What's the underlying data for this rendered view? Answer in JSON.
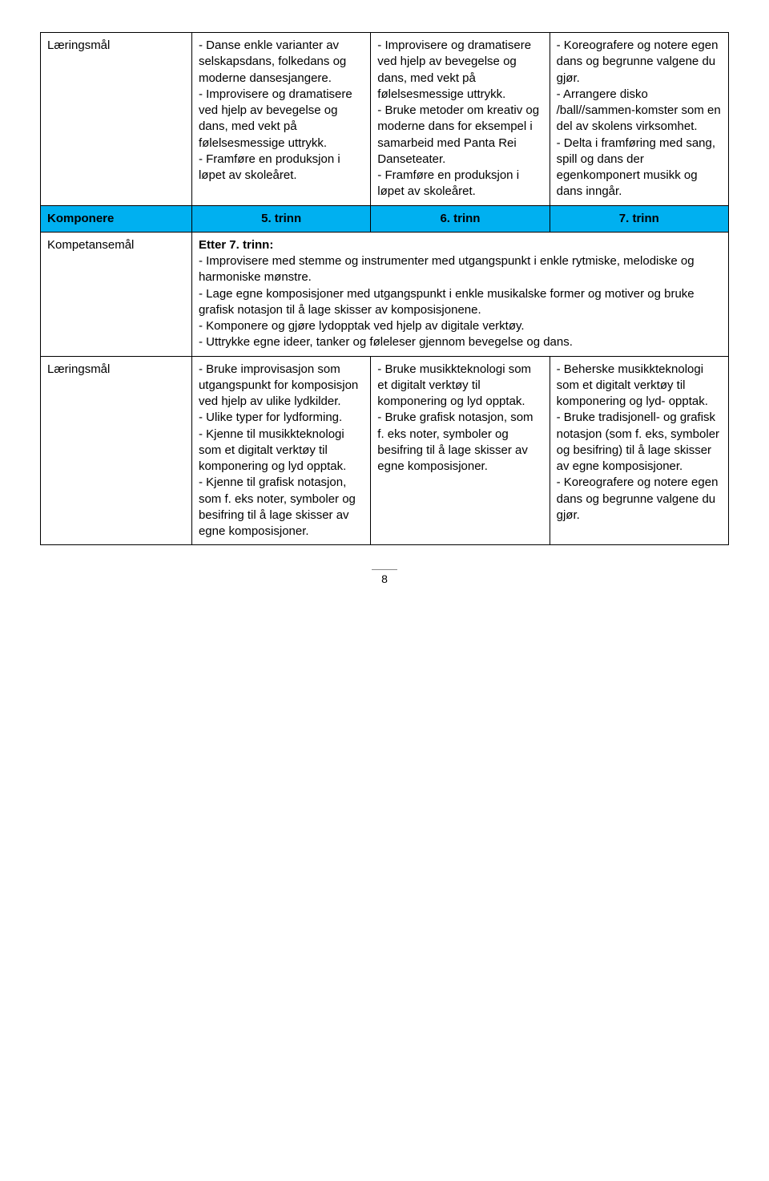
{
  "colors": {
    "blue_header": "#00b0f0",
    "border": "#000000",
    "text": "#000000",
    "bg": "#ffffff"
  },
  "row1": {
    "label": "Læringsmål",
    "c2": "- Danse enkle varianter av selskapsdans, folkedans og moderne dansesjangere.\n- Improvisere og dramatisere ved hjelp av bevegelse og dans, med vekt på følelsesmessige uttrykk.\n- Framføre en produksjon i løpet av skoleåret.",
    "c3": "- Improvisere og dramatisere ved hjelp av bevegelse og dans, med vekt på følelsesmessige uttrykk.\n- Bruke metoder om kreativ og moderne dans for eksempel i samarbeid med Panta Rei Danseteater.\n- Framføre en produksjon i løpet av skoleåret.",
    "c4": "- Koreografere og notere egen dans og begrunne valgene du gjør.\n- Arrangere disko /ball//sammen-komster som en del av skolens virksomhet.\n - Delta i framføring med sang, spill og dans der egenkomponert musikk og dans inngår."
  },
  "row2": {
    "label": "Komponere",
    "c2": "5. trinn",
    "c3": "6. trinn",
    "c4": "7. trinn"
  },
  "row3": {
    "label": "Kompetansemål",
    "heading": "Etter 7. trinn:",
    "body": "- Improvisere med stemme og instrumenter med utgangspunkt i enkle rytmiske, melodiske og harmoniske mønstre.\n- Lage egne komposisjoner med utgangspunkt i enkle musikalske former og motiver og bruke grafisk notasjon til å lage skisser av komposisjonene.\n- Komponere og gjøre lydopptak ved hjelp av digitale verktøy.\n- Uttrykke egne ideer, tanker og føleleser gjennom bevegelse og dans."
  },
  "row4": {
    "label": "Læringsmål",
    "c2": "- Bruke improvisasjon som utgangspunkt for komposisjon ved hjelp av ulike lydkilder.\n- Ulike typer for lydforming.\n- Kjenne til musikkteknologi som et digitalt verktøy til komponering og lyd opptak.\n- Kjenne til grafisk notasjon, som f. eks noter, symboler og besifring til å lage skisser av egne komposisjoner.",
    "c3": "- Bruke musikkteknologi som et digitalt verktøy til komponering og lyd opptak.\n- Bruke grafisk notasjon, som f. eks noter, symboler og besifring til å lage skisser av egne komposisjoner.",
    "c4": "- Beherske musikkteknologi som et digitalt verktøy til komponering og lyd- opptak.\n- Bruke tradisjonell- og grafisk notasjon (som f. eks, symboler og besifring) til å lage skisser av egne komposisjoner.\n- Koreografere og notere egen dans og begrunne valgene du gjør."
  },
  "page_number": "8"
}
